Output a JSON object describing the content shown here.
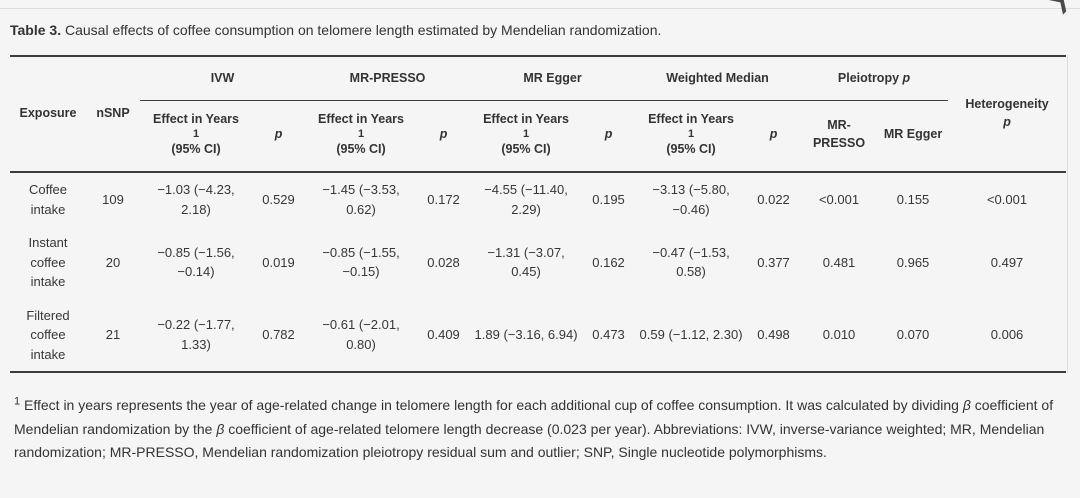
{
  "page": {
    "caption_bold": "Table 3.",
    "caption_rest": " Causal effects of coffee consumption on telomere length estimated by Mendelian randomization.",
    "expand_icon": "❯"
  },
  "table": {
    "header": {
      "exposure": "Exposure",
      "nsnp": "nSNP",
      "groups": [
        "IVW",
        "MR-PRESSO",
        "MR Egger",
        "Weighted Median"
      ],
      "pleiotropy": "Pleiotropy",
      "p": "p",
      "heterogeneity": "Heterogeneity",
      "effect_line1": "Effect in Years",
      "effect_sup": "1",
      "effect_line2": "(95% CI)",
      "pleio_sub_presso": "MR-PRESSO",
      "pleio_sub_egger": "MR Egger"
    },
    "rows": [
      {
        "exposure": "Coffee intake",
        "nsnp": "109",
        "ivw_effect": "−1.03 (−4.23, 2.18)",
        "ivw_p": "0.529",
        "presso_effect": "−1.45 (−3.53, 0.62)",
        "presso_p": "0.172",
        "egger_effect": "−4.55 (−11.40, 2.29)",
        "egger_p": "0.195",
        "wm_effect": "−3.13 (−5.80, −0.46)",
        "wm_p": "0.022",
        "pleio_presso": "<0.001",
        "pleio_egger": "0.155",
        "het": "<0.001"
      },
      {
        "exposure": "Instant coffee intake",
        "nsnp": "20",
        "ivw_effect": "−0.85 (−1.56, −0.14)",
        "ivw_p": "0.019",
        "presso_effect": "−0.85 (−1.55, −0.15)",
        "presso_p": "0.028",
        "egger_effect": "−1.31 (−3.07, 0.45)",
        "egger_p": "0.162",
        "wm_effect": "−0.47 (−1.53, 0.58)",
        "wm_p": "0.377",
        "pleio_presso": "0.481",
        "pleio_egger": "0.965",
        "het": "0.497"
      },
      {
        "exposure": "Filtered coffee intake",
        "nsnp": "21",
        "ivw_effect": "−0.22 (−1.77, 1.33)",
        "ivw_p": "0.782",
        "presso_effect": "−0.61 (−2.01, 0.80)",
        "presso_p": "0.409",
        "egger_effect": "1.89 (−3.16, 6.94)",
        "egger_p": "0.473",
        "wm_effect": "0.59 (−1.12, 2.30)",
        "wm_p": "0.498",
        "pleio_presso": "0.010",
        "pleio_egger": "0.070",
        "het": "0.006"
      }
    ]
  },
  "footnote": {
    "sup": "1",
    "parts": [
      {
        "t": " Effect in years represents the year of age-related change in telomere length for each additional cup of coffee consumption. It was calculated by dividing "
      },
      {
        "t": "β",
        "i": true
      },
      {
        "t": " coefficient of Mendelian randomization by the "
      },
      {
        "t": "β",
        "i": true
      },
      {
        "t": " coefficient of age-related telomere length decrease (0.023 per year). Abbreviations: IVW, inverse-variance weighted; MR, Mendelian randomization; MR-PRESSO, Mendelian randomization pleiotropy residual sum and outlier; SNP, Single nucleotide polymorphisms."
      }
    ]
  }
}
